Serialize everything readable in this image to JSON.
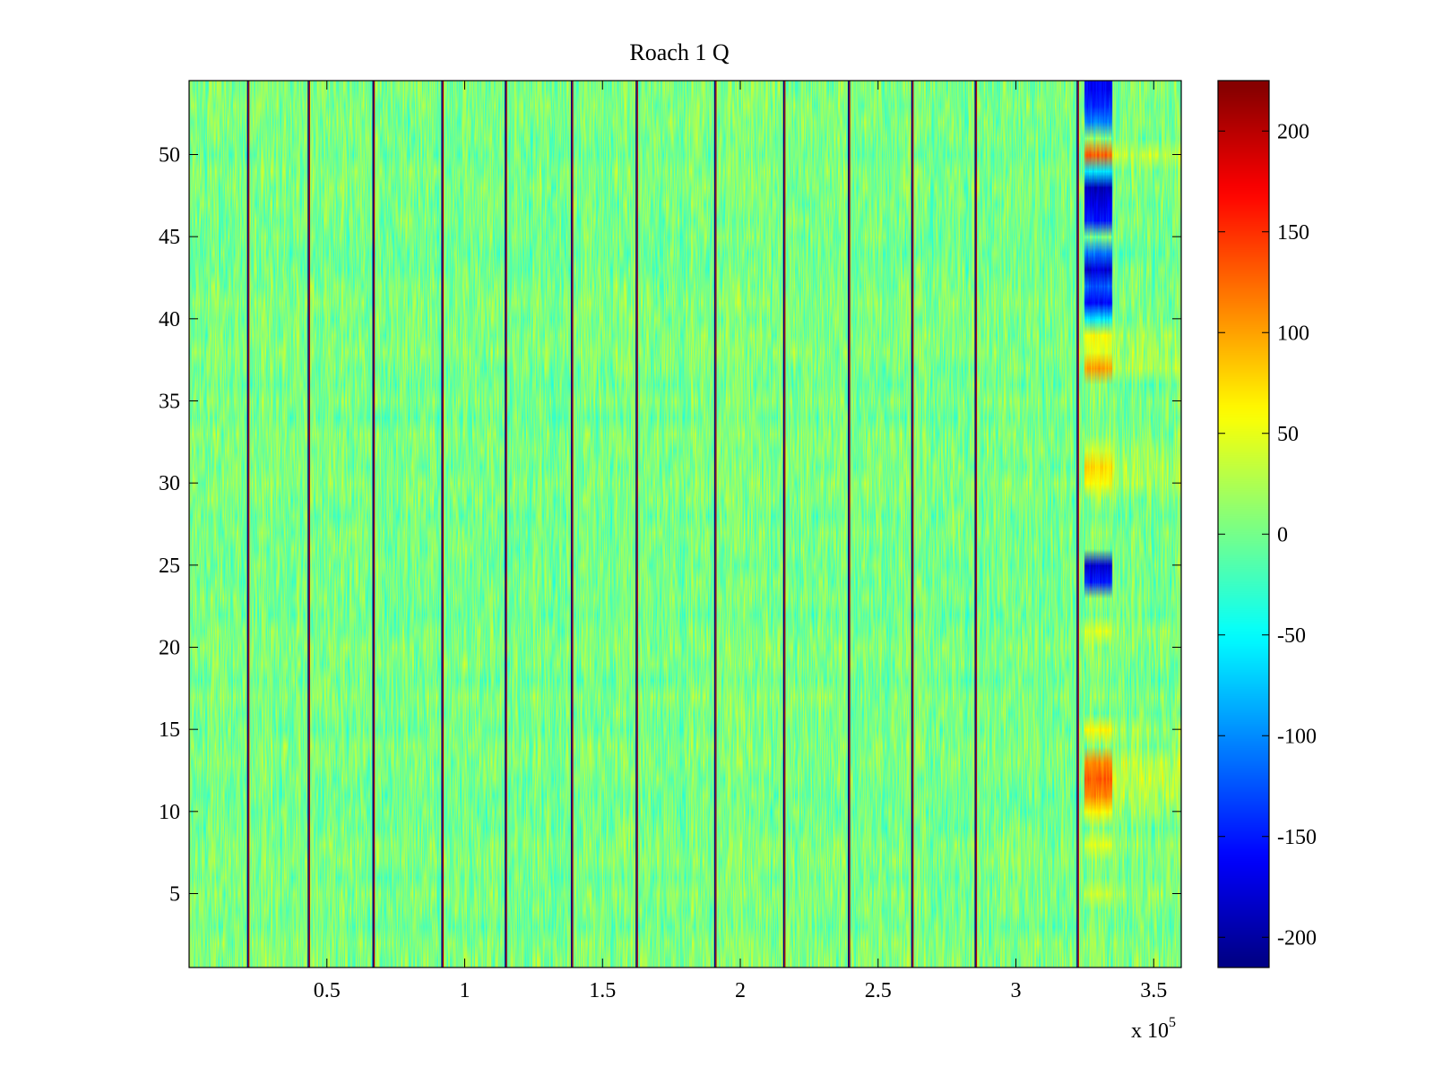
{
  "chart_data": {
    "type": "heatmap",
    "title": "Roach 1 Q",
    "colormap": "jet",
    "x_range": [
      0,
      360000
    ],
    "y_range": [
      0.5,
      54.5
    ],
    "rows": 54,
    "x_exponent_label": "x 10",
    "x_exponent_power": "5",
    "x_ticks": [
      {
        "value": 50000,
        "label": "0.5"
      },
      {
        "value": 100000,
        "label": "1"
      },
      {
        "value": 150000,
        "label": "1.5"
      },
      {
        "value": 200000,
        "label": "2"
      },
      {
        "value": 250000,
        "label": "2.5"
      },
      {
        "value": 300000,
        "label": "3"
      },
      {
        "value": 350000,
        "label": "3.5"
      }
    ],
    "y_ticks": [
      {
        "value": 5,
        "label": "5"
      },
      {
        "value": 10,
        "label": "10"
      },
      {
        "value": 15,
        "label": "15"
      },
      {
        "value": 20,
        "label": "20"
      },
      {
        "value": 25,
        "label": "25"
      },
      {
        "value": 30,
        "label": "30"
      },
      {
        "value": 35,
        "label": "35"
      },
      {
        "value": 40,
        "label": "40"
      },
      {
        "value": 45,
        "label": "45"
      },
      {
        "value": 50,
        "label": "50"
      }
    ],
    "color_range": [
      -215,
      225
    ],
    "colorbar_ticks": [
      {
        "value": 200,
        "label": "200"
      },
      {
        "value": 150,
        "label": "150"
      },
      {
        "value": 100,
        "label": "100"
      },
      {
        "value": 50,
        "label": "50"
      },
      {
        "value": 0,
        "label": "0"
      },
      {
        "value": -50,
        "label": "-50"
      },
      {
        "value": -100,
        "label": "-100"
      },
      {
        "value": -150,
        "label": "-150"
      },
      {
        "value": -200,
        "label": "-200"
      }
    ],
    "background_value_range": [
      -40,
      45
    ],
    "dark_column_boundaries_x": [
      21500,
      43500,
      67000,
      92000,
      115000,
      139000,
      162500,
      191000,
      216000,
      239500,
      262500,
      285500,
      322500
    ],
    "anomaly_x_range": [
      325000,
      335000
    ],
    "anomaly_rows": [
      {
        "row": 54,
        "value": -160
      },
      {
        "row": 53,
        "value": -140
      },
      {
        "row": 52,
        "value": -100
      },
      {
        "row": 50,
        "value": 130
      },
      {
        "row": 49,
        "value": -60
      },
      {
        "row": 48,
        "value": -190
      },
      {
        "row": 47,
        "value": -170
      },
      {
        "row": 46,
        "value": -150
      },
      {
        "row": 44,
        "value": -110
      },
      {
        "row": 43,
        "value": -180
      },
      {
        "row": 42,
        "value": -120
      },
      {
        "row": 41,
        "value": -160
      },
      {
        "row": 40,
        "value": -60
      },
      {
        "row": 39,
        "value": 55
      },
      {
        "row": 38,
        "value": 45
      },
      {
        "row": 37,
        "value": 100
      },
      {
        "row": 32,
        "value": 40
      },
      {
        "row": 31,
        "value": 75
      },
      {
        "row": 30,
        "value": 60
      },
      {
        "row": 25,
        "value": -180
      },
      {
        "row": 24,
        "value": -150
      },
      {
        "row": 21,
        "value": 45
      },
      {
        "row": 15,
        "value": 60
      },
      {
        "row": 13,
        "value": 110
      },
      {
        "row": 12,
        "value": 130
      },
      {
        "row": 11,
        "value": 110
      },
      {
        "row": 10,
        "value": 60
      },
      {
        "row": 8,
        "value": 45
      },
      {
        "row": 5,
        "value": 40
      }
    ]
  }
}
